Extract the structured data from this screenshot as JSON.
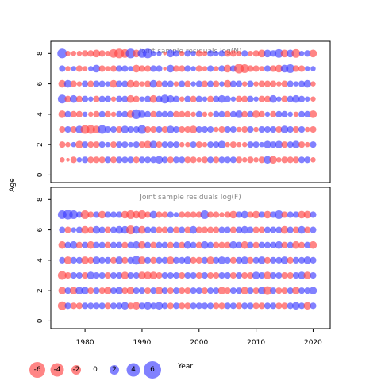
{
  "chart_data": {
    "type": "bubble",
    "ylabel": "Age",
    "xlabel": "Year",
    "xlim": [
      1974,
      2023
    ],
    "ylim": [
      -0.5,
      8.8
    ],
    "x_ticks": [
      1980,
      1990,
      2000,
      2010,
      2020
    ],
    "y_ticks": [
      0,
      2,
      4,
      6,
      8
    ],
    "colors": {
      "negative": "#ff4444",
      "positive": "#3d3dff",
      "frame": "#000000"
    },
    "color_rule": "negative residuals red, positive residuals blue",
    "legend": {
      "placement": "bottom-left",
      "values": [
        -6,
        -4,
        -2,
        0,
        2,
        4,
        6
      ]
    },
    "panels": [
      {
        "title": "Joint sample residuals log(N)",
        "ages": [
          1,
          2,
          3,
          4,
          5,
          6,
          7,
          8
        ],
        "years": [
          1976,
          2020
        ],
        "residuals": {
          "8": [
            6,
            -2,
            -2,
            -2,
            -3,
            -3,
            -4,
            -3,
            -2,
            -5,
            -6,
            -5,
            6,
            -4,
            5,
            6,
            2,
            2,
            -1,
            4,
            3,
            -2,
            3,
            2,
            -3,
            -2,
            3,
            2,
            3,
            -3,
            -3,
            -2,
            3,
            -2,
            -3,
            -4,
            4,
            3,
            5,
            -4,
            4,
            -5,
            2,
            3,
            -4
          ],
          "7": [
            3,
            -2,
            2,
            -3,
            -2,
            2,
            4,
            -3,
            -2,
            -3,
            3,
            3,
            2,
            -4,
            -3,
            -3,
            3,
            3,
            -1,
            4,
            -3,
            -3,
            3,
            2,
            -3,
            -2,
            3,
            -2,
            3,
            -4,
            3,
            -6,
            -5,
            -3,
            -3,
            -2,
            3,
            -3,
            -4,
            4,
            5,
            -3,
            -3,
            2,
            2
          ],
          "6": [
            -4,
            4,
            -3,
            -2,
            3,
            -3,
            3,
            3,
            2,
            -4,
            3,
            3,
            -4,
            -3,
            -2,
            -3,
            4,
            -3,
            3,
            3,
            -2,
            3,
            -3,
            2,
            3,
            -3,
            3,
            -3,
            2,
            -4,
            3,
            3,
            -2,
            3,
            -2,
            -3,
            -3,
            -3,
            -2,
            -3,
            3,
            2,
            3,
            4,
            -2
          ],
          "5": [
            5,
            -3,
            4,
            -3,
            3,
            2,
            -3,
            3,
            3,
            -2,
            3,
            3,
            -4,
            -3,
            2,
            3,
            -4,
            3,
            5,
            4,
            3,
            -2,
            3,
            -3,
            3,
            2,
            -3,
            3,
            4,
            3,
            2,
            -3,
            -3,
            3,
            2,
            -3,
            -3,
            4,
            2,
            -3,
            3,
            4,
            3,
            2,
            -2
          ],
          "4": [
            -4,
            3,
            -3,
            -3,
            2,
            -2,
            -3,
            3,
            -3,
            -2,
            3,
            3,
            -4,
            6,
            4,
            3,
            -3,
            3,
            3,
            3,
            -3,
            -3,
            -3,
            -2,
            3,
            -2,
            -2,
            3,
            3,
            -3,
            3,
            4,
            -3,
            3,
            -4,
            -3,
            2,
            -3,
            3,
            3,
            2,
            -2,
            3,
            3,
            -4
          ],
          "3": [
            -3,
            3,
            -3,
            4,
            -5,
            -5,
            -4,
            5,
            3,
            3,
            -3,
            4,
            3,
            3,
            5,
            -3,
            -3,
            3,
            -3,
            4,
            3,
            -3,
            -3,
            -4,
            3,
            3,
            3,
            -2,
            -3,
            3,
            3,
            -2,
            -3,
            3,
            -2,
            3,
            3,
            3,
            -3,
            4,
            3,
            -3,
            3,
            -2,
            -3
          ],
          "2": [
            -3,
            -2,
            2,
            -4,
            3,
            -3,
            -3,
            3,
            2,
            -3,
            3,
            3,
            2,
            3,
            -3,
            -4,
            4,
            -3,
            3,
            3,
            3,
            -2,
            -2,
            3,
            -3,
            -2,
            3,
            3,
            4,
            -2,
            -3,
            -2,
            -2,
            3,
            3,
            2,
            4,
            3,
            4,
            -3,
            3,
            4,
            -3,
            -2,
            3
          ],
          "1": [
            -2,
            -1,
            -3,
            2,
            3,
            -3,
            -3,
            -3,
            3,
            -3,
            3,
            3,
            3,
            -3,
            3,
            3,
            3,
            4,
            3,
            -3,
            3,
            3,
            -3,
            -3,
            -2,
            -3,
            3,
            -3,
            3,
            3,
            3,
            -3,
            -2,
            -3,
            -2,
            -3,
            4,
            -4,
            -2,
            -3,
            -3,
            -3,
            3,
            3,
            -2
          ]
        }
      },
      {
        "title": "Joint sample residuals log(F)",
        "ages": [
          1,
          2,
          3,
          4,
          5,
          6,
          7
        ],
        "years": [
          1976,
          2020
        ],
        "residuals": {
          "7": [
            5,
            6,
            5,
            3,
            -5,
            -3,
            3,
            -4,
            3,
            3,
            3,
            -4,
            -5,
            -4,
            -5,
            -3,
            4,
            -3,
            -3,
            3,
            2,
            -3,
            -3,
            -3,
            -3,
            5,
            -3,
            -3,
            -2,
            -3,
            -4,
            3,
            4,
            -3,
            -4,
            3,
            -4,
            3,
            5,
            -3,
            3,
            3,
            -4,
            -4,
            3
          ],
          "6": [
            3,
            -3,
            2,
            3,
            -4,
            -3,
            4,
            3,
            -3,
            3,
            4,
            4,
            -5,
            4,
            -4,
            3,
            3,
            -3,
            -3,
            3,
            -3,
            3,
            -3,
            4,
            -3,
            -3,
            -3,
            -3,
            3,
            3,
            -3,
            3,
            4,
            3,
            -3,
            -3,
            3,
            3,
            3,
            -4,
            3,
            -3,
            4,
            -3,
            3
          ],
          "5": [
            -4,
            3,
            4,
            -3,
            3,
            -4,
            3,
            3,
            -3,
            3,
            3,
            -3,
            3,
            4,
            -4,
            3,
            -3,
            3,
            3,
            -3,
            3,
            -3,
            4,
            3,
            -3,
            4,
            3,
            -3,
            -3,
            -3,
            4,
            3,
            -4,
            3,
            -3,
            3,
            3,
            3,
            4,
            -3,
            3,
            -4,
            -3,
            3,
            -4
          ],
          "4": [
            3,
            -4,
            3,
            3,
            -4,
            -3,
            4,
            3,
            3,
            -3,
            4,
            -3,
            3,
            5,
            -4,
            3,
            -3,
            3,
            3,
            -4,
            3,
            3,
            4,
            -3,
            -3,
            3,
            -4,
            3,
            4,
            3,
            -3,
            3,
            4,
            -3,
            3,
            4,
            -3,
            3,
            3,
            4,
            -3,
            3,
            3,
            4,
            3
          ],
          "3": [
            -5,
            -3,
            3,
            3,
            -3,
            4,
            3,
            3,
            -3,
            3,
            3,
            -4,
            3,
            3,
            -4,
            -4,
            -4,
            -3,
            3,
            3,
            3,
            -3,
            3,
            3,
            -3,
            3,
            -3,
            -3,
            3,
            3,
            -3,
            3,
            -3,
            -3,
            4,
            3,
            -4,
            3,
            3,
            -3,
            -3,
            3,
            4,
            -4,
            3
          ],
          "2": [
            -4,
            3,
            -4,
            4,
            4,
            -3,
            3,
            -3,
            -4,
            3,
            4,
            -3,
            -4,
            3,
            3,
            -3,
            3,
            -4,
            3,
            -3,
            3,
            -3,
            -3,
            3,
            3,
            -3,
            3,
            3,
            -4,
            -3,
            3,
            3,
            -4,
            3,
            -3,
            4,
            -5,
            3,
            -3,
            -3,
            3,
            -4,
            3,
            3,
            4
          ],
          "1": [
            -5,
            3,
            -3,
            -3,
            3,
            3,
            3,
            3,
            -3,
            3,
            3,
            4,
            -3,
            -4,
            3,
            4,
            3,
            4,
            3,
            -3,
            3,
            -3,
            -3,
            3,
            3,
            3,
            3,
            -3,
            -3,
            3,
            3,
            -3,
            3,
            3,
            -3,
            -3,
            3,
            3,
            -3,
            -3,
            3,
            4,
            3,
            -4,
            3
          ]
        }
      }
    ]
  }
}
